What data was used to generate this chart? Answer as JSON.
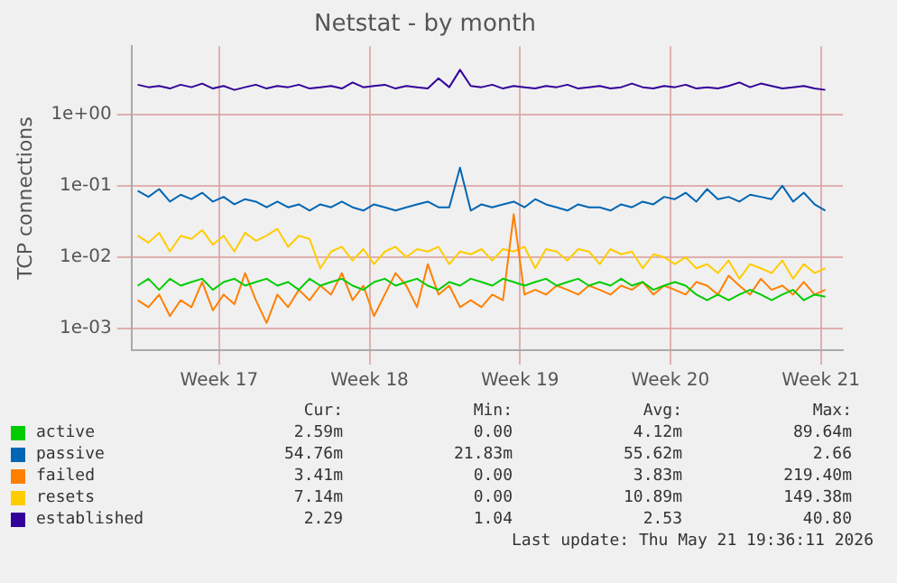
{
  "chart_data": {
    "type": "line",
    "title": "Netstat - by month",
    "ylabel": "TCP connections",
    "log": "y",
    "grid": true,
    "legend": "bottom",
    "marker": "none",
    "line_style": "solid",
    "ylim": [
      0.0005,
      9
    ],
    "yticks": [
      {
        "value": 0.001,
        "label": "1e-03"
      },
      {
        "value": 0.01,
        "label": "1e-02"
      },
      {
        "value": 0.1,
        "label": "1e-01"
      },
      {
        "value": 1,
        "label": "1e+00"
      }
    ],
    "xlim": [
      "2026-04-18T17:00",
      "2026-05-21T19:36"
    ],
    "xticks": [
      {
        "value": "2026-04-22T19:00",
        "label": "Week 17"
      },
      {
        "value": "2026-04-29T19:00",
        "label": "Week 18"
      },
      {
        "value": "2026-05-06T19:00",
        "label": "Week 19"
      },
      {
        "value": "2026-05-13T19:00",
        "label": "Week 20"
      },
      {
        "value": "2026-05-20T19:00",
        "label": "Week 21"
      }
    ],
    "x": [
      "2026-04-19T00:00",
      "2026-04-19T12:00",
      "2026-04-20T00:00",
      "2026-04-20T12:00",
      "2026-04-21T00:00",
      "2026-04-21T12:00",
      "2026-04-22T00:00",
      "2026-04-22T12:00",
      "2026-04-23T00:00",
      "2026-04-23T12:00",
      "2026-04-24T00:00",
      "2026-04-24T12:00",
      "2026-04-25T00:00",
      "2026-04-25T12:00",
      "2026-04-26T00:00",
      "2026-04-26T12:00",
      "2026-04-27T00:00",
      "2026-04-27T12:00",
      "2026-04-28T00:00",
      "2026-04-28T12:00",
      "2026-04-29T00:00",
      "2026-04-29T12:00",
      "2026-04-30T00:00",
      "2026-04-30T12:00",
      "2026-05-01T00:00",
      "2026-05-01T12:00",
      "2026-05-02T00:00",
      "2026-05-02T12:00",
      "2026-05-03T00:00",
      "2026-05-03T12:00",
      "2026-05-04T00:00",
      "2026-05-04T12:00",
      "2026-05-05T00:00",
      "2026-05-05T12:00",
      "2026-05-06T00:00",
      "2026-05-06T12:00",
      "2026-05-07T00:00",
      "2026-05-07T12:00",
      "2026-05-08T00:00",
      "2026-05-08T12:00",
      "2026-05-09T00:00",
      "2026-05-09T12:00",
      "2026-05-10T00:00",
      "2026-05-10T12:00",
      "2026-05-11T00:00",
      "2026-05-11T12:00",
      "2026-05-12T00:00",
      "2026-05-12T12:00",
      "2026-05-13T00:00",
      "2026-05-13T12:00",
      "2026-05-14T00:00",
      "2026-05-14T12:00",
      "2026-05-15T00:00",
      "2026-05-15T12:00",
      "2026-05-16T00:00",
      "2026-05-16T12:00",
      "2026-05-17T00:00",
      "2026-05-17T12:00",
      "2026-05-18T00:00",
      "2026-05-18T12:00",
      "2026-05-19T00:00",
      "2026-05-19T12:00",
      "2026-05-20T00:00",
      "2026-05-20T12:00",
      "2026-05-21T00:00"
    ],
    "series": [
      {
        "name": "active",
        "color": "#00cc00",
        "values": [
          0.004,
          0.005,
          0.0035,
          0.005,
          0.004,
          0.0045,
          0.005,
          0.0035,
          0.0045,
          0.005,
          0.004,
          0.0045,
          0.005,
          0.004,
          0.0045,
          0.0035,
          0.005,
          0.004,
          0.0045,
          0.005,
          0.004,
          0.0035,
          0.0045,
          0.005,
          0.004,
          0.0045,
          0.005,
          0.004,
          0.0035,
          0.0045,
          0.004,
          0.005,
          0.0045,
          0.004,
          0.005,
          0.0045,
          0.004,
          0.0045,
          0.005,
          0.004,
          0.0045,
          0.005,
          0.004,
          0.0045,
          0.004,
          0.005,
          0.004,
          0.0045,
          0.0035,
          0.004,
          0.0045,
          0.004,
          0.003,
          0.0025,
          0.003,
          0.0025,
          0.003,
          0.0035,
          0.003,
          0.0025,
          0.003,
          0.0035,
          0.0025,
          0.003,
          0.0028
        ]
      },
      {
        "name": "passive",
        "color": "#0066b3",
        "values": [
          0.085,
          0.07,
          0.09,
          0.06,
          0.075,
          0.065,
          0.08,
          0.06,
          0.07,
          0.055,
          0.065,
          0.06,
          0.05,
          0.06,
          0.05,
          0.055,
          0.045,
          0.055,
          0.05,
          0.06,
          0.05,
          0.045,
          0.055,
          0.05,
          0.045,
          0.05,
          0.055,
          0.06,
          0.05,
          0.05,
          0.18,
          0.045,
          0.055,
          0.05,
          0.055,
          0.06,
          0.05,
          0.065,
          0.055,
          0.05,
          0.045,
          0.055,
          0.05,
          0.05,
          0.045,
          0.055,
          0.05,
          0.06,
          0.055,
          0.07,
          0.065,
          0.08,
          0.06,
          0.09,
          0.065,
          0.07,
          0.06,
          0.075,
          0.07,
          0.065,
          0.1,
          0.06,
          0.08,
          0.055,
          0.045
        ]
      },
      {
        "name": "failed",
        "color": "#ff8000",
        "values": [
          0.0025,
          0.002,
          0.003,
          0.0015,
          0.0025,
          0.002,
          0.0045,
          0.0018,
          0.003,
          0.0022,
          0.006,
          0.0025,
          0.0012,
          0.003,
          0.002,
          0.0035,
          0.0025,
          0.004,
          0.003,
          0.006,
          0.0025,
          0.004,
          0.0015,
          0.003,
          0.006,
          0.004,
          0.002,
          0.008,
          0.003,
          0.004,
          0.002,
          0.0025,
          0.002,
          0.003,
          0.0025,
          0.04,
          0.003,
          0.0035,
          0.003,
          0.004,
          0.0035,
          0.003,
          0.004,
          0.0035,
          0.003,
          0.004,
          0.0035,
          0.0045,
          0.003,
          0.004,
          0.0035,
          0.003,
          0.0045,
          0.004,
          0.003,
          0.0055,
          0.004,
          0.003,
          0.005,
          0.0035,
          0.004,
          0.003,
          0.0045,
          0.003,
          0.0035
        ]
      },
      {
        "name": "resets",
        "color": "#ffcc00",
        "values": [
          0.02,
          0.016,
          0.022,
          0.012,
          0.02,
          0.018,
          0.024,
          0.015,
          0.02,
          0.012,
          0.022,
          0.017,
          0.02,
          0.025,
          0.014,
          0.02,
          0.018,
          0.007,
          0.012,
          0.014,
          0.009,
          0.013,
          0.008,
          0.012,
          0.014,
          0.01,
          0.013,
          0.012,
          0.014,
          0.008,
          0.012,
          0.011,
          0.013,
          0.009,
          0.013,
          0.012,
          0.014,
          0.007,
          0.013,
          0.012,
          0.009,
          0.013,
          0.012,
          0.008,
          0.013,
          0.011,
          0.012,
          0.007,
          0.011,
          0.01,
          0.008,
          0.01,
          0.007,
          0.008,
          0.006,
          0.009,
          0.005,
          0.008,
          0.007,
          0.006,
          0.009,
          0.005,
          0.008,
          0.006,
          0.007
        ]
      },
      {
        "name": "established",
        "color": "#330099",
        "values": [
          2.6,
          2.4,
          2.5,
          2.3,
          2.6,
          2.4,
          2.7,
          2.3,
          2.5,
          2.2,
          2.4,
          2.6,
          2.3,
          2.5,
          2.4,
          2.6,
          2.3,
          2.4,
          2.5,
          2.3,
          2.8,
          2.4,
          2.5,
          2.6,
          2.3,
          2.5,
          2.4,
          2.3,
          3.2,
          2.4,
          4.2,
          2.5,
          2.4,
          2.6,
          2.3,
          2.5,
          2.4,
          2.3,
          2.5,
          2.4,
          2.6,
          2.3,
          2.4,
          2.5,
          2.3,
          2.4,
          2.7,
          2.4,
          2.3,
          2.5,
          2.4,
          2.6,
          2.3,
          2.4,
          2.3,
          2.5,
          2.8,
          2.4,
          2.7,
          2.5,
          2.3,
          2.4,
          2.5,
          2.3,
          2.2
        ]
      }
    ],
    "annotations": [
      "Cur:",
      "Min:",
      "Avg:",
      "Max:",
      "2.59m",
      "0.00",
      "4.12m",
      "89.64m",
      "54.76m",
      "21.83m",
      "55.62m",
      "2.66",
      "3.41m",
      "0.00",
      "3.83m",
      "219.40m",
      "7.14m",
      "0.00",
      "10.89m",
      "149.38m",
      "2.29",
      "1.04",
      "2.53",
      "40.80",
      "Last update: Thu May 21 19:36:11 2026"
    ]
  }
}
